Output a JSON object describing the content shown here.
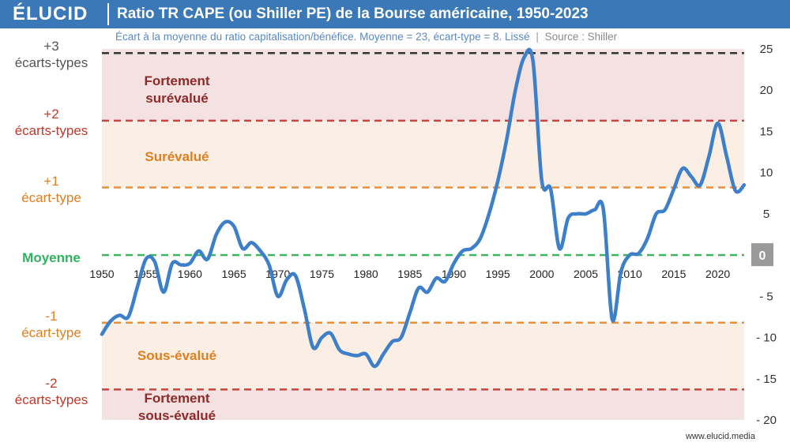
{
  "header": {
    "logo": "ÉLUCID",
    "title": "Ratio TR CAPE (ou Shiller PE) de la Bourse américaine, 1950-2023"
  },
  "subtitle": {
    "main": "Écart à la moyenne du ratio capitalisation/bénéfice. Moyenne = 23, écart-type = 8. Lissé",
    "separator": "|",
    "source": "Source : Shiller"
  },
  "left_labels": {
    "plus3": [
      "+3",
      "écarts-types"
    ],
    "plus2": [
      "+2",
      "écarts-types"
    ],
    "plus1": [
      "+1",
      "écart-type"
    ],
    "mean": "Moyenne",
    "minus1": [
      "-1",
      "écart-type"
    ],
    "minus2": [
      "-2",
      "écarts-types"
    ]
  },
  "zone_labels": {
    "strong_over": [
      "Fortement",
      "surévalué"
    ],
    "over": "Surévalué",
    "under": "Sous-évalué",
    "strong_under": [
      "Fortement",
      "sous-évalué"
    ]
  },
  "footer": {
    "url": "www.elucid.media"
  },
  "colors": {
    "header": "#3a78b8",
    "line": "#3d7fc9",
    "zone_strong": "#f4e1e1",
    "zone_mild": "#faeee5",
    "dash_black": "#333333",
    "dash_red": "#c64545",
    "dash_orange": "#e8913a",
    "dash_green": "#3db562"
  },
  "chart_data": {
    "type": "line",
    "title": "Ratio TR CAPE (ou Shiller PE) de la Bourse américaine, 1950-2023",
    "xlim": [
      1950,
      2023
    ],
    "ylim": [
      -20,
      25
    ],
    "x_ticks": [
      "1950",
      "1955",
      "1960",
      "1965",
      "1970",
      "1975",
      "1980",
      "1985",
      "1990",
      "1995",
      "2000",
      "2005",
      "2010",
      "2015",
      "2020"
    ],
    "y_ticks": [
      "25",
      "20",
      "15",
      "10",
      "5",
      "0",
      "- 5",
      "- 10",
      "- 15",
      "- 20"
    ],
    "reference_lines": [
      {
        "y": 24.5,
        "label": "+3 écarts-types"
      },
      {
        "y": 16.3,
        "label": "+2 écarts-types"
      },
      {
        "y": 8.2,
        "label": "+1 écart-type"
      },
      {
        "y": 0,
        "label": "Moyenne"
      },
      {
        "y": -8.2,
        "label": "-1 écart-type"
      },
      {
        "y": -16.3,
        "label": "-2 écarts-types"
      }
    ],
    "series": [
      {
        "x": [
          1950,
          1951,
          1952,
          1953,
          1954,
          1955,
          1956,
          1957,
          1958,
          1959,
          1960,
          1961,
          1962,
          1963,
          1964,
          1965,
          1966,
          1967,
          1968,
          1969,
          1970,
          1971,
          1972,
          1973,
          1974,
          1975,
          1976,
          1977,
          1978,
          1979,
          1980,
          1981,
          1982,
          1983,
          1984,
          1985,
          1986,
          1987,
          1988,
          1989,
          1990,
          1991,
          1992,
          1993,
          1994,
          1995,
          1996,
          1997,
          1998,
          1999,
          2000,
          2001,
          2002,
          2003,
          2004,
          2005,
          2006,
          2007,
          2008,
          2009,
          2010,
          2011,
          2012,
          2013,
          2014,
          2015,
          2016,
          2017,
          2018,
          2019,
          2020,
          2021,
          2022,
          2023
        ],
        "y": [
          -9.6,
          -8.0,
          -7.3,
          -7.5,
          -4.0,
          -0.5,
          -0.8,
          -4.5,
          -1.0,
          -1.2,
          -1.0,
          0.5,
          -0.5,
          2.5,
          4.0,
          3.5,
          0.8,
          1.5,
          0.5,
          -1.2,
          -5.0,
          -3.0,
          -2.5,
          -6.5,
          -11.2,
          -10.0,
          -9.5,
          -11.5,
          -12.0,
          -12.2,
          -12.0,
          -13.5,
          -12.0,
          -10.5,
          -10.0,
          -7.0,
          -4.0,
          -4.5,
          -2.8,
          -3.2,
          -1.0,
          0.5,
          0.8,
          2.0,
          5.0,
          9.0,
          14.0,
          20.0,
          24.0,
          23.5,
          9.0,
          8.0,
          0.8,
          4.5,
          5.0,
          5.0,
          5.5,
          5.5,
          -7.8,
          -2.0,
          0.0,
          0.2,
          2.0,
          5.0,
          5.5,
          8.0,
          10.5,
          9.5,
          8.5,
          12.0,
          16.0,
          12.0,
          7.8,
          8.5
        ]
      }
    ]
  }
}
